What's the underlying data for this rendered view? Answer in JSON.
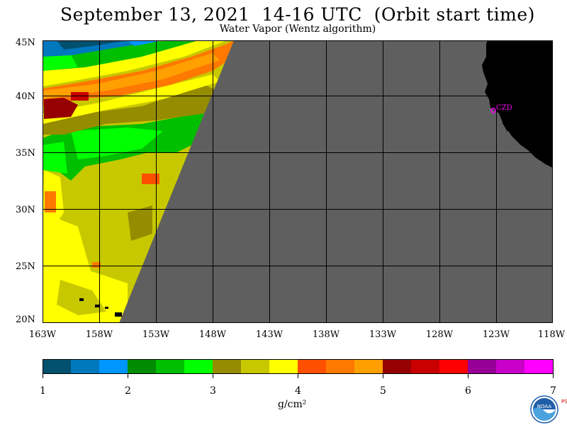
{
  "title": "September 13, 2021  14-16 UTC  (Orbit start time)",
  "subtitle": "Water Vapor (Wentz algorithm)",
  "lat_labels": [
    "45N",
    "40N",
    "35N",
    "30N",
    "25N",
    "20N"
  ],
  "lon_labels": [
    "163W",
    "158W",
    "153W",
    "148W",
    "143W",
    "138W",
    "133W",
    "128W",
    "123W",
    "118W"
  ],
  "station_label": "CZD",
  "colorbar": {
    "colors": [
      "#00506e",
      "#0078be",
      "#0096ff",
      "#008c00",
      "#00be00",
      "#00ff00",
      "#968c00",
      "#c8c800",
      "#ffff00",
      "#ff5000",
      "#ff7800",
      "#ffa000",
      "#960000",
      "#c80000",
      "#ff0000",
      "#960096",
      "#c800c8",
      "#ff00ff"
    ],
    "tick_labels": [
      "1",
      "2",
      "3",
      "4",
      "5",
      "6",
      "7"
    ],
    "units": "g/cm²"
  },
  "colors": {
    "no_data": "#5f5f5f",
    "land": "#000000",
    "station": "#ff00ff"
  },
  "logo": {
    "name": "NOAA",
    "side_text": "PSL"
  }
}
